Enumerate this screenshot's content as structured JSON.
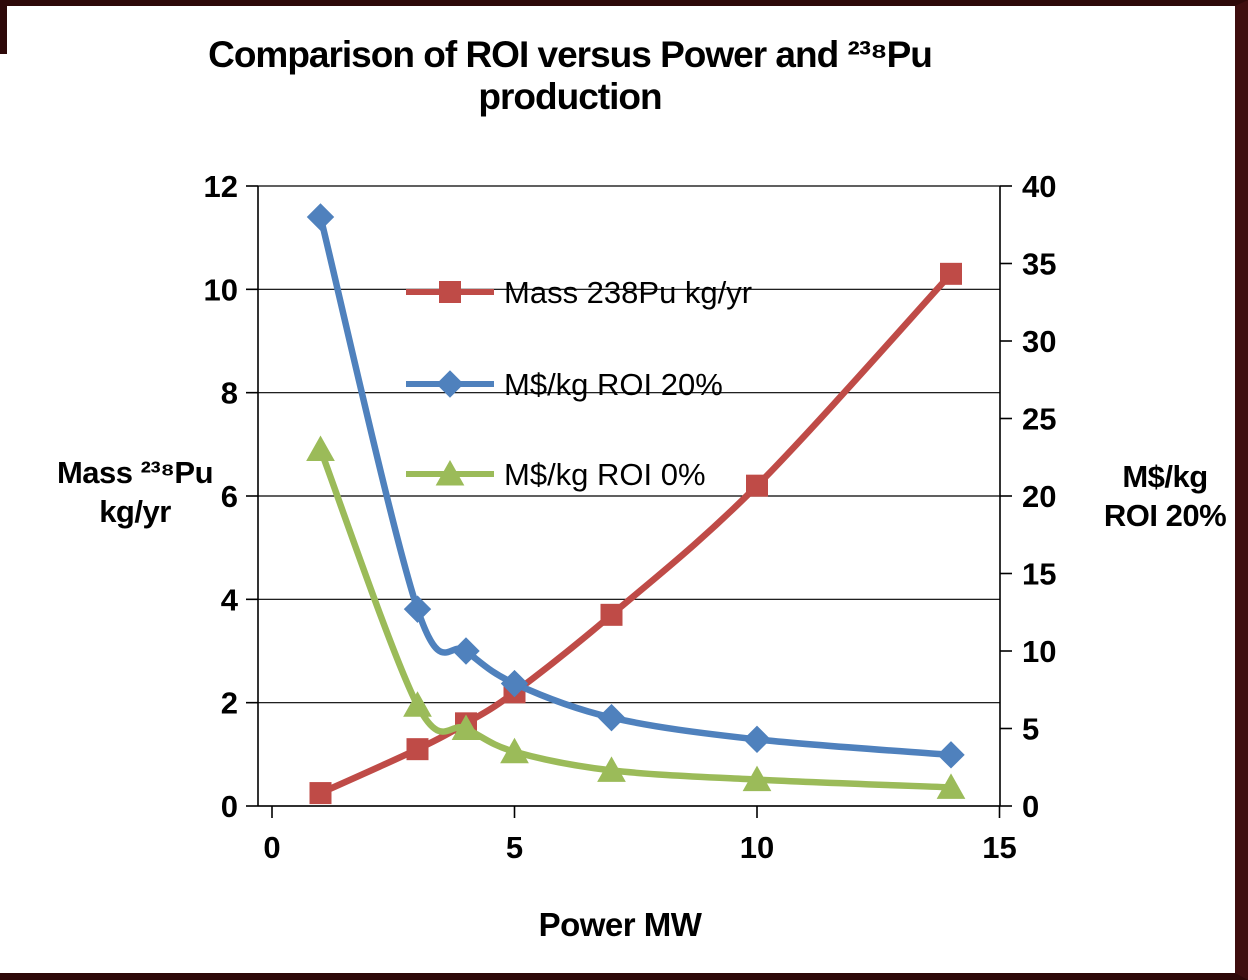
{
  "frame": {
    "background": "#ffffff",
    "border_color": "#2e0909",
    "right_bar_color": "#3f0e0f"
  },
  "chart_data": {
    "type": "line",
    "title": "Comparison of ROI versus Power and ²³⁸Pu production",
    "xlabel": "Power MW",
    "ylabel_left_lines": [
      "Mass ²³⁸Pu",
      "kg/yr"
    ],
    "ylabel_right_lines": [
      "M$/kg",
      "ROI 20%"
    ],
    "xlim": [
      0,
      15
    ],
    "x_ticks": [
      0,
      5,
      10,
      15
    ],
    "ylim_left": [
      0,
      12
    ],
    "y_left_ticks": [
      0,
      2,
      4,
      6,
      8,
      10,
      12
    ],
    "ylim_right": [
      0,
      40
    ],
    "y_right_ticks": [
      0,
      5,
      10,
      15,
      20,
      25,
      30,
      35,
      40
    ],
    "grid": "horizontal",
    "grid_color": "#000000",
    "axis_color": "#000000",
    "legend_position": "inside-upper-left",
    "series": [
      {
        "name": "Mass 238Pu kg/yr",
        "axis": "left",
        "color": "#bf4b47",
        "marker": "square",
        "x": [
          1,
          3,
          4,
          5,
          7,
          10,
          14
        ],
        "y": [
          0.25,
          1.1,
          1.6,
          2.2,
          3.7,
          6.2,
          10.3
        ]
      },
      {
        "name": "M$/kg ROI 20%",
        "axis": "right",
        "color": "#4f81bd",
        "marker": "diamond",
        "x": [
          1,
          3,
          4,
          5,
          7,
          10,
          14
        ],
        "y": [
          38,
          12.7,
          10,
          7.9,
          5.7,
          4.3,
          3.3
        ]
      },
      {
        "name": "M$/kg ROI 0%",
        "axis": "right",
        "color": "#9bbb59",
        "marker": "triangle",
        "x": [
          1,
          3,
          4,
          5,
          7,
          10,
          14
        ],
        "y": [
          23,
          6.5,
          5,
          3.5,
          2.3,
          1.7,
          1.2
        ]
      }
    ]
  }
}
